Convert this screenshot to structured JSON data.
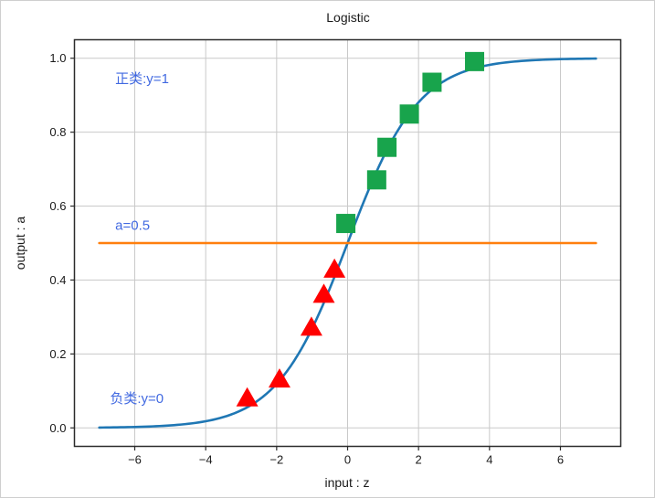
{
  "chart_data": {
    "type": "line",
    "title": "Logistic",
    "xlabel": "input : z",
    "ylabel": "output : a",
    "xlim": [
      -7.7,
      7.7
    ],
    "ylim": [
      -0.05,
      1.05
    ],
    "grid": true,
    "legend": "none",
    "x_tick_values": [
      -6,
      -4,
      -2,
      0,
      2,
      4,
      6
    ],
    "x_tick_labels": [
      "−6",
      "−4",
      "−2",
      "0",
      "2",
      "4",
      "6"
    ],
    "y_tick_values": [
      0.0,
      0.2,
      0.4,
      0.6,
      0.8,
      1.0
    ],
    "y_tick_labels": [
      "0.0",
      "0.2",
      "0.4",
      "0.6",
      "0.8",
      "1.0"
    ],
    "colors": {
      "curve": "#1f77b4",
      "threshold": "#ff7f0e",
      "positive": "#18a44c",
      "negative": "#ff0000",
      "annotation": "#4169e1",
      "grid": "#c9c9c9",
      "axis": "#2b2b2b",
      "text": "#1a1a1a"
    },
    "series": [
      {
        "name": "sigmoid-curve",
        "type": "function",
        "fn": "sigmoid",
        "formula": "a = 1 / (1 + exp(-z))",
        "x_min": -7,
        "x_max": 7,
        "color": "#1f77b4"
      },
      {
        "name": "threshold-line",
        "type": "hline",
        "y": 0.5,
        "x_min": -7,
        "x_max": 7,
        "color": "#ff7f0e"
      },
      {
        "name": "negative-class-points",
        "type": "scatter",
        "marker": "triangle-up",
        "color": "#ff0000",
        "points": [
          [
            -2.83,
            0.083
          ],
          [
            -1.92,
            0.134
          ],
          [
            -1.02,
            0.274
          ],
          [
            -0.67,
            0.363
          ],
          [
            -0.37,
            0.431
          ]
        ]
      },
      {
        "name": "positive-class-points",
        "type": "scatter",
        "marker": "square",
        "color": "#18a44c",
        "points": [
          [
            -0.05,
            0.553
          ],
          [
            0.82,
            0.671
          ],
          [
            1.11,
            0.759
          ],
          [
            1.74,
            0.849
          ],
          [
            2.38,
            0.935
          ],
          [
            3.58,
            0.991
          ]
        ]
      }
    ],
    "annotations": [
      {
        "name": "positive-class-label",
        "text": "正类:y=1",
        "x": -6.55,
        "y": 0.945,
        "color": "#4169e1"
      },
      {
        "name": "threshold-label",
        "text": "a=0.5",
        "x": -6.55,
        "y": 0.548,
        "color": "#4169e1"
      },
      {
        "name": "negative-class-label",
        "text": "负类:y=0",
        "x": -6.7,
        "y": 0.08,
        "color": "#4169e1"
      }
    ]
  }
}
